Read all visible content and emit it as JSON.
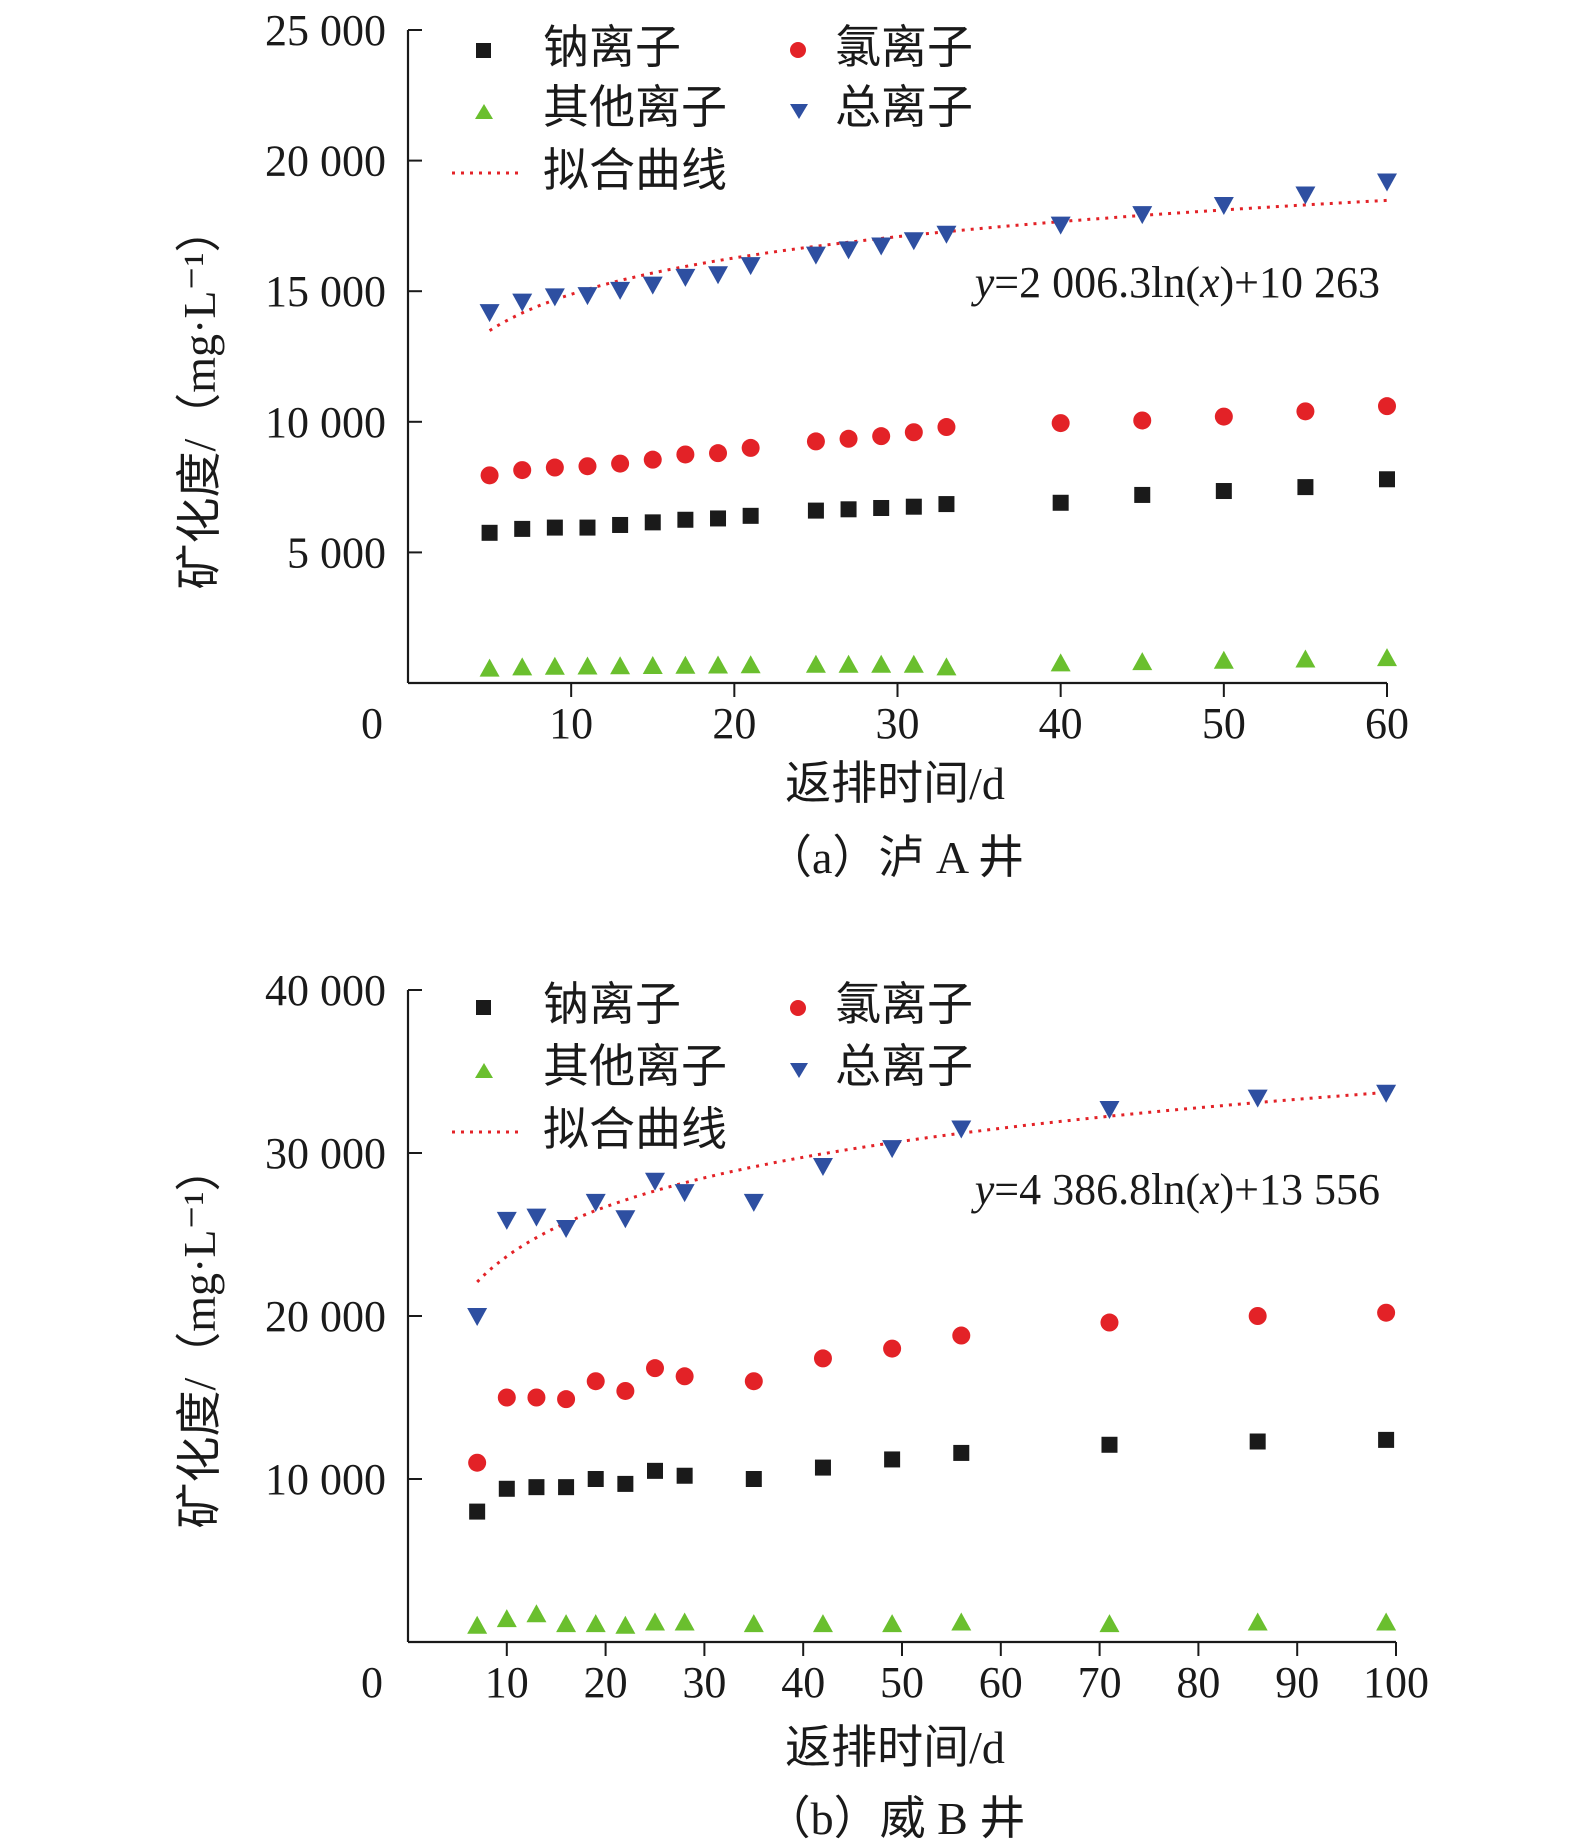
{
  "chart_data": [
    {
      "type": "scatter",
      "caption": "（a）泸 A 井",
      "xlabel": "返排时间/d",
      "ylabel": "矿化度/（mg·L⁻¹）",
      "xlim": [
        0,
        60
      ],
      "ylim": [
        0,
        25000
      ],
      "xticks": [
        0,
        10,
        20,
        30,
        40,
        50,
        60
      ],
      "xtick_labels": [
        "0",
        "10",
        "20",
        "30",
        "40",
        "50",
        "60"
      ],
      "yticks": [
        5000,
        10000,
        15000,
        20000,
        25000
      ],
      "ytick_labels": [
        "5 000",
        "10 000",
        "15 000",
        "20 000",
        "25 000"
      ],
      "legend": {
        "placement": "top-left",
        "na": "钠离子",
        "cl": "氯离子",
        "other": "其他离子",
        "total": "总离子",
        "fit": "拟合曲线"
      },
      "fit": {
        "a": 2006.3,
        "b": 10263,
        "x_range": [
          5,
          60
        ]
      },
      "equation": {
        "y": "y",
        "rest1": "=2 006.3ln(",
        "x": "x",
        "rest2": ")+10 263"
      },
      "x": [
        5,
        7,
        9,
        11,
        13,
        15,
        17,
        19,
        21,
        25,
        27,
        29,
        31,
        33,
        40,
        45,
        50,
        55,
        60
      ],
      "series": [
        {
          "key": "na",
          "color": "#1a1a1a",
          "marker": "square",
          "values": [
            5750,
            5900,
            5950,
            5950,
            6050,
            6150,
            6250,
            6300,
            6400,
            6600,
            6650,
            6700,
            6750,
            6850,
            6900,
            7200,
            7350,
            7500,
            7800
          ]
        },
        {
          "key": "cl",
          "color": "#e32227",
          "marker": "circle",
          "values": [
            7950,
            8150,
            8250,
            8300,
            8400,
            8550,
            8750,
            8800,
            9000,
            9250,
            9350,
            9450,
            9600,
            9800,
            9950,
            10050,
            10200,
            10400,
            10600
          ]
        },
        {
          "key": "other",
          "color": "#6abf2e",
          "marker": "triangle-up",
          "values": [
            550,
            600,
            620,
            630,
            640,
            650,
            660,
            670,
            680,
            700,
            700,
            700,
            700,
            600,
            750,
            800,
            850,
            900,
            950
          ]
        },
        {
          "key": "total",
          "color": "#2e4fa1",
          "marker": "triangle-down",
          "values": [
            14200,
            14600,
            14800,
            14850,
            15050,
            15250,
            15550,
            15650,
            16000,
            16400,
            16600,
            16750,
            16950,
            17200,
            17550,
            17950,
            18300,
            18700,
            19200
          ]
        }
      ]
    },
    {
      "type": "scatter",
      "caption": "（b）威 B 井",
      "xlabel": "返排时间/d",
      "ylabel": "矿化度/（mg·L⁻¹）",
      "xlim": [
        0,
        100
      ],
      "ylim": [
        0,
        40000
      ],
      "xticks": [
        0,
        10,
        20,
        30,
        40,
        50,
        60,
        70,
        80,
        90,
        100
      ],
      "xtick_labels": [
        "0",
        "10",
        "20",
        "30",
        "40",
        "50",
        "60",
        "70",
        "80",
        "90",
        "100"
      ],
      "yticks": [
        10000,
        20000,
        30000,
        40000
      ],
      "ytick_labels": [
        "10 000",
        "20 000",
        "30 000",
        "40 000"
      ],
      "legend": {
        "placement": "top-left",
        "na": "钠离子",
        "cl": "氯离子",
        "other": "其他离子",
        "total": "总离子",
        "fit": "拟合曲线"
      },
      "fit": {
        "a": 4386.8,
        "b": 13556,
        "x_range": [
          7,
          99
        ]
      },
      "equation": {
        "y": "y",
        "rest1": "=4 386.8ln(",
        "x": "x",
        "rest2": ")+13 556"
      },
      "x": [
        7,
        10,
        13,
        16,
        19,
        22,
        25,
        28,
        35,
        42,
        49,
        56,
        71,
        86,
        99
      ],
      "series": [
        {
          "key": "na",
          "color": "#1a1a1a",
          "marker": "square",
          "values": [
            8000,
            9400,
            9500,
            9500,
            10000,
            9700,
            10500,
            10200,
            10000,
            10700,
            11200,
            11600,
            12100,
            12300,
            12400
          ]
        },
        {
          "key": "cl",
          "color": "#e32227",
          "marker": "circle",
          "values": [
            11000,
            15000,
            15000,
            14900,
            16000,
            15400,
            16800,
            16300,
            16000,
            17400,
            18000,
            18800,
            19600,
            20000,
            20200
          ]
        },
        {
          "key": "other",
          "color": "#6abf2e",
          "marker": "triangle-up",
          "values": [
            1000,
            1400,
            1700,
            1100,
            1100,
            1000,
            1200,
            1200,
            1100,
            1100,
            1100,
            1200,
            1100,
            1200,
            1200
          ]
        },
        {
          "key": "total",
          "color": "#2e4fa1",
          "marker": "triangle-down",
          "values": [
            20000,
            25900,
            26100,
            25400,
            27000,
            26000,
            28300,
            27600,
            27000,
            29200,
            30300,
            31500,
            32700,
            33400,
            33700
          ]
        }
      ]
    }
  ]
}
